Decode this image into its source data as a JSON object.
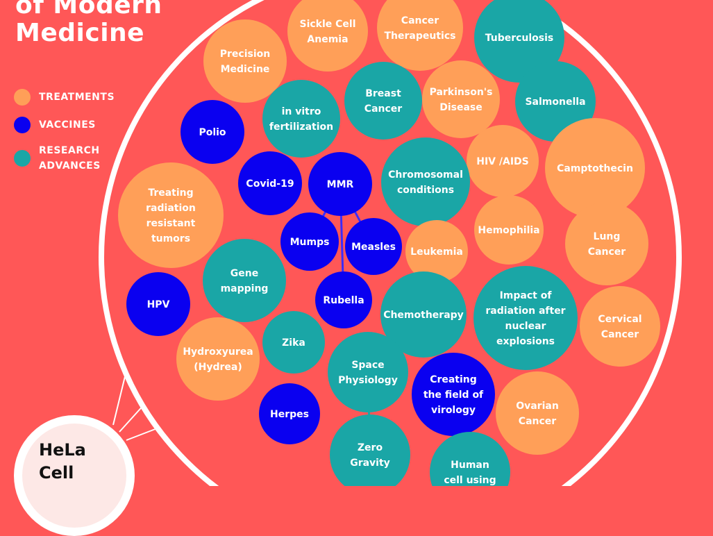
{
  "title_lines": [
    "of Modern",
    "Medicine"
  ],
  "legend": [
    {
      "label": "TREATMENTS",
      "color": "#FF9F58",
      "icon": "treatment-dot"
    },
    {
      "label": "VACCINES",
      "color": "#0A00F0",
      "icon": "vaccine-dot"
    },
    {
      "label": "RESEARCH\nADVANCES",
      "color": "#1AA6A6",
      "icon": "research-dot"
    }
  ],
  "colors": {
    "background": "#FF5757",
    "ring": "#FFFFFF",
    "treatment": "#FF9F58",
    "vaccine": "#0A00F0",
    "research": "#1AA6A6",
    "link": "#3B2BFF"
  },
  "center": {
    "label": "HeLa\nCell"
  },
  "bubbles": [
    {
      "label": "Sickle Cell\nAnemia",
      "category": "treatment"
    },
    {
      "label": "Cancer\nTherapeutics",
      "category": "treatment"
    },
    {
      "label": "Tuberculosis",
      "category": "research"
    },
    {
      "label": "Precision\nMedicine",
      "category": "treatment"
    },
    {
      "label": "Breast\nCancer",
      "category": "research"
    },
    {
      "label": "Parkinson's\nDisease",
      "category": "treatment"
    },
    {
      "label": "Salmonella",
      "category": "research"
    },
    {
      "label": "in vitro\nfertilization",
      "category": "research"
    },
    {
      "label": "Polio",
      "category": "vaccine"
    },
    {
      "label": "HIV /AIDS",
      "category": "treatment"
    },
    {
      "label": "Camptothecin",
      "category": "treatment"
    },
    {
      "label": "Chromosomal\nconditions",
      "category": "research"
    },
    {
      "label": "Covid-19",
      "category": "vaccine"
    },
    {
      "label": "MMR",
      "category": "vaccine"
    },
    {
      "label": "Treating\nradiation\nresistant\ntumors",
      "category": "treatment"
    },
    {
      "label": "Hemophilia",
      "category": "treatment"
    },
    {
      "label": "Lung\nCancer",
      "category": "treatment"
    },
    {
      "label": "Mumps",
      "category": "vaccine"
    },
    {
      "label": "Measles",
      "category": "vaccine"
    },
    {
      "label": "Leukemia",
      "category": "treatment"
    },
    {
      "label": "Gene\nmapping",
      "category": "research"
    },
    {
      "label": "HPV",
      "category": "vaccine"
    },
    {
      "label": "Rubella",
      "category": "vaccine"
    },
    {
      "label": "Chemotherapy",
      "category": "research"
    },
    {
      "label": "Impact of\nradiation after\nnuclear\nexplosions",
      "category": "research"
    },
    {
      "label": "Cervical\nCancer",
      "category": "treatment"
    },
    {
      "label": "Zika",
      "category": "research"
    },
    {
      "label": "Hydroxyurea\n(Hydrea)",
      "category": "treatment"
    },
    {
      "label": "Space\nPhysiology",
      "category": "research"
    },
    {
      "label": "Creating\nthe field of\nvirology",
      "category": "vaccine"
    },
    {
      "label": "Ovarian\nCancer",
      "category": "treatment"
    },
    {
      "label": "Herpes",
      "category": "vaccine"
    },
    {
      "label": "Zero\nGravity",
      "category": "research"
    },
    {
      "label": "Human\ncell using",
      "category": "research"
    }
  ]
}
